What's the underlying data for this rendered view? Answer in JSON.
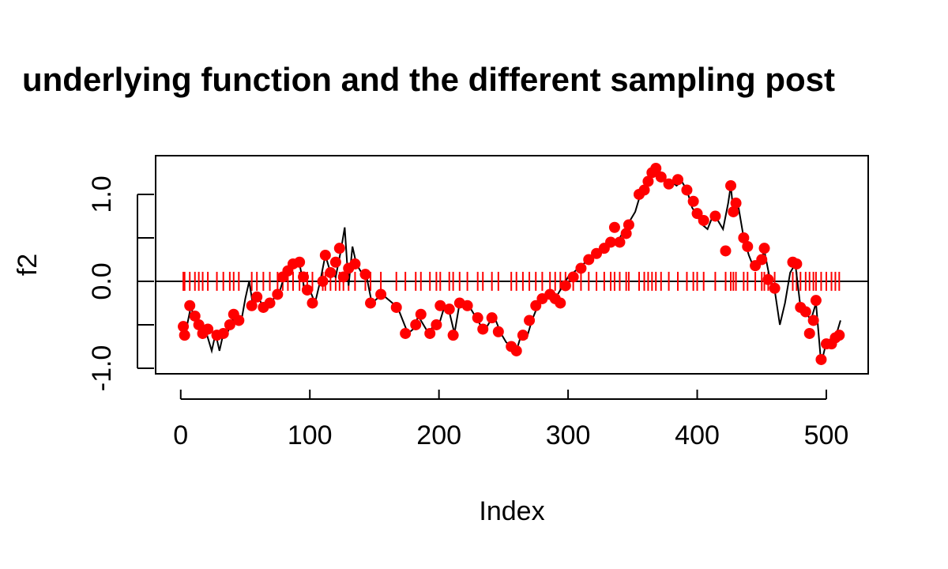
{
  "chart_data": {
    "type": "line",
    "title": "underlying function and the different sampling post",
    "x_label": "Index",
    "y_label": "f2",
    "xlim": [
      -19.44,
      532.44
    ],
    "ylim": [
      -1.064,
      1.445
    ],
    "xticks": [
      0,
      100,
      200,
      300,
      400,
      500
    ],
    "yticks": [
      {
        "value": -1,
        "label": "-1.0"
      },
      {
        "value": -0.5,
        "label": null
      },
      {
        "value": 0,
        "label": "0.0"
      },
      {
        "value": 0.5,
        "label": null
      },
      {
        "value": 1,
        "label": "1.0"
      }
    ],
    "hline": 0,
    "line": {
      "color": "#000000",
      "x": [
        3,
        5,
        8,
        10,
        13,
        16,
        20,
        24,
        27,
        30,
        33,
        36,
        40,
        44,
        47,
        50,
        53,
        56,
        60,
        64,
        68,
        72,
        76,
        80,
        84,
        88,
        92,
        96,
        100,
        104,
        108,
        112,
        116,
        120,
        124,
        127,
        130,
        133,
        136,
        140,
        144,
        148,
        152,
        156,
        160,
        164,
        168,
        172,
        176,
        180,
        184,
        188,
        192,
        196,
        200,
        204,
        208,
        212,
        216,
        220,
        224,
        228,
        232,
        236,
        240,
        244,
        248,
        252,
        256,
        260,
        264,
        268,
        272,
        276,
        280,
        284,
        288,
        292,
        296,
        300,
        304,
        308,
        312,
        316,
        320,
        324,
        328,
        332,
        336,
        340,
        344,
        348,
        352,
        356,
        360,
        364,
        368,
        372,
        376,
        380,
        384,
        388,
        392,
        396,
        400,
        404,
        408,
        412,
        416,
        420,
        424,
        426,
        428,
        432,
        436,
        440,
        444,
        448,
        452,
        456,
        460,
        464,
        468,
        472,
        476,
        480,
        484,
        488,
        492,
        496,
        500,
        504,
        508,
        511
      ],
      "values": [
        -0.62,
        -0.5,
        -0.28,
        -0.42,
        -0.45,
        -0.55,
        -0.6,
        -0.8,
        -0.6,
        -0.8,
        -0.6,
        -0.6,
        -0.45,
        -0.38,
        -0.45,
        -0.2,
        0,
        -0.28,
        -0.18,
        -0.3,
        -0.25,
        -0.2,
        -0.15,
        0.05,
        0.15,
        0.2,
        0.2,
        -0.1,
        -0.1,
        -0.25,
        0,
        0.3,
        0.1,
        0.05,
        0.35,
        0.62,
        -0.05,
        0.4,
        0.2,
        0.1,
        0.05,
        -0.25,
        -0.2,
        -0.15,
        -0.2,
        -0.25,
        -0.3,
        -0.45,
        -0.6,
        -0.55,
        -0.4,
        -0.5,
        -0.6,
        -0.5,
        -0.5,
        -0.3,
        -0.35,
        -0.6,
        -0.25,
        -0.3,
        -0.3,
        -0.4,
        -0.5,
        -0.55,
        -0.45,
        -0.45,
        -0.6,
        -0.7,
        -0.75,
        -0.8,
        -0.6,
        -0.65,
        -0.45,
        -0.3,
        -0.2,
        -0.15,
        -0.2,
        -0.15,
        -0.05,
        0.05,
        0.1,
        0.15,
        0.2,
        0.25,
        0.3,
        0.35,
        0.4,
        0.45,
        0.45,
        0.5,
        0.6,
        0.7,
        0.8,
        1.0,
        1.1,
        1.2,
        1.3,
        1.25,
        1.15,
        1.15,
        1.1,
        1.15,
        1.05,
        0.85,
        0.75,
        0.65,
        0.6,
        0.75,
        0.7,
        0.6,
        0.9,
        1.1,
        0.8,
        0.85,
        0.5,
        0.3,
        0.15,
        0.2,
        0.35,
        0.05,
        -0.1,
        -0.5,
        -0.25,
        0.1,
        0.2,
        -0.3,
        -0.35,
        -0.45,
        -0.25,
        -0.95,
        -0.7,
        -0.75,
        -0.6,
        -0.45
      ]
    },
    "samples": {
      "color": "#ff0000",
      "x": [
        2,
        3,
        7,
        11,
        14,
        17,
        21,
        28,
        33,
        38,
        41,
        45,
        55,
        59,
        64,
        69,
        75,
        79,
        83,
        87,
        92,
        95,
        98,
        102,
        110,
        112,
        116,
        120,
        123,
        126,
        130,
        135,
        143,
        147,
        155,
        167,
        174,
        182,
        186,
        193,
        198,
        201,
        208,
        211,
        216,
        222,
        230,
        234,
        241,
        246,
        256,
        260,
        265,
        270,
        275,
        280,
        286,
        290,
        294,
        298,
        304,
        310,
        316,
        322,
        328,
        333,
        336,
        340,
        345,
        347,
        355,
        359,
        362,
        365,
        368,
        372,
        378,
        385,
        392,
        397,
        400,
        405,
        414,
        422,
        426,
        428,
        430,
        436,
        439,
        445,
        450,
        452,
        455,
        460,
        474,
        477,
        480,
        484,
        487,
        490,
        492,
        496,
        500,
        504,
        507,
        510
      ],
      "values": [
        -0.52,
        -0.62,
        -0.28,
        -0.4,
        -0.5,
        -0.6,
        -0.55,
        -0.62,
        -0.6,
        -0.5,
        -0.38,
        -0.45,
        -0.28,
        -0.18,
        -0.3,
        -0.25,
        -0.15,
        0.05,
        0.12,
        0.2,
        0.22,
        0.05,
        -0.1,
        -0.25,
        0,
        0.3,
        0.1,
        0.22,
        0.38,
        0.05,
        0.15,
        0.2,
        0.08,
        -0.25,
        -0.15,
        -0.3,
        -0.6,
        -0.5,
        -0.38,
        -0.6,
        -0.5,
        -0.28,
        -0.32,
        -0.62,
        -0.25,
        -0.28,
        -0.42,
        -0.55,
        -0.42,
        -0.58,
        -0.75,
        -0.8,
        -0.62,
        -0.45,
        -0.28,
        -0.2,
        -0.15,
        -0.2,
        -0.25,
        -0.05,
        0.05,
        0.15,
        0.25,
        0.32,
        0.38,
        0.45,
        0.62,
        0.45,
        0.55,
        0.65,
        1.0,
        1.05,
        1.15,
        1.25,
        1.3,
        1.2,
        1.12,
        1.17,
        1.05,
        0.92,
        0.78,
        0.7,
        0.75,
        0.35,
        1.1,
        0.8,
        0.9,
        0.5,
        0.4,
        0.18,
        0.25,
        0.38,
        0.02,
        -0.08,
        0.22,
        0.2,
        -0.3,
        -0.35,
        -0.6,
        -0.45,
        -0.22,
        -0.9,
        -0.72,
        -0.72,
        -0.65,
        -0.62
      ]
    }
  }
}
